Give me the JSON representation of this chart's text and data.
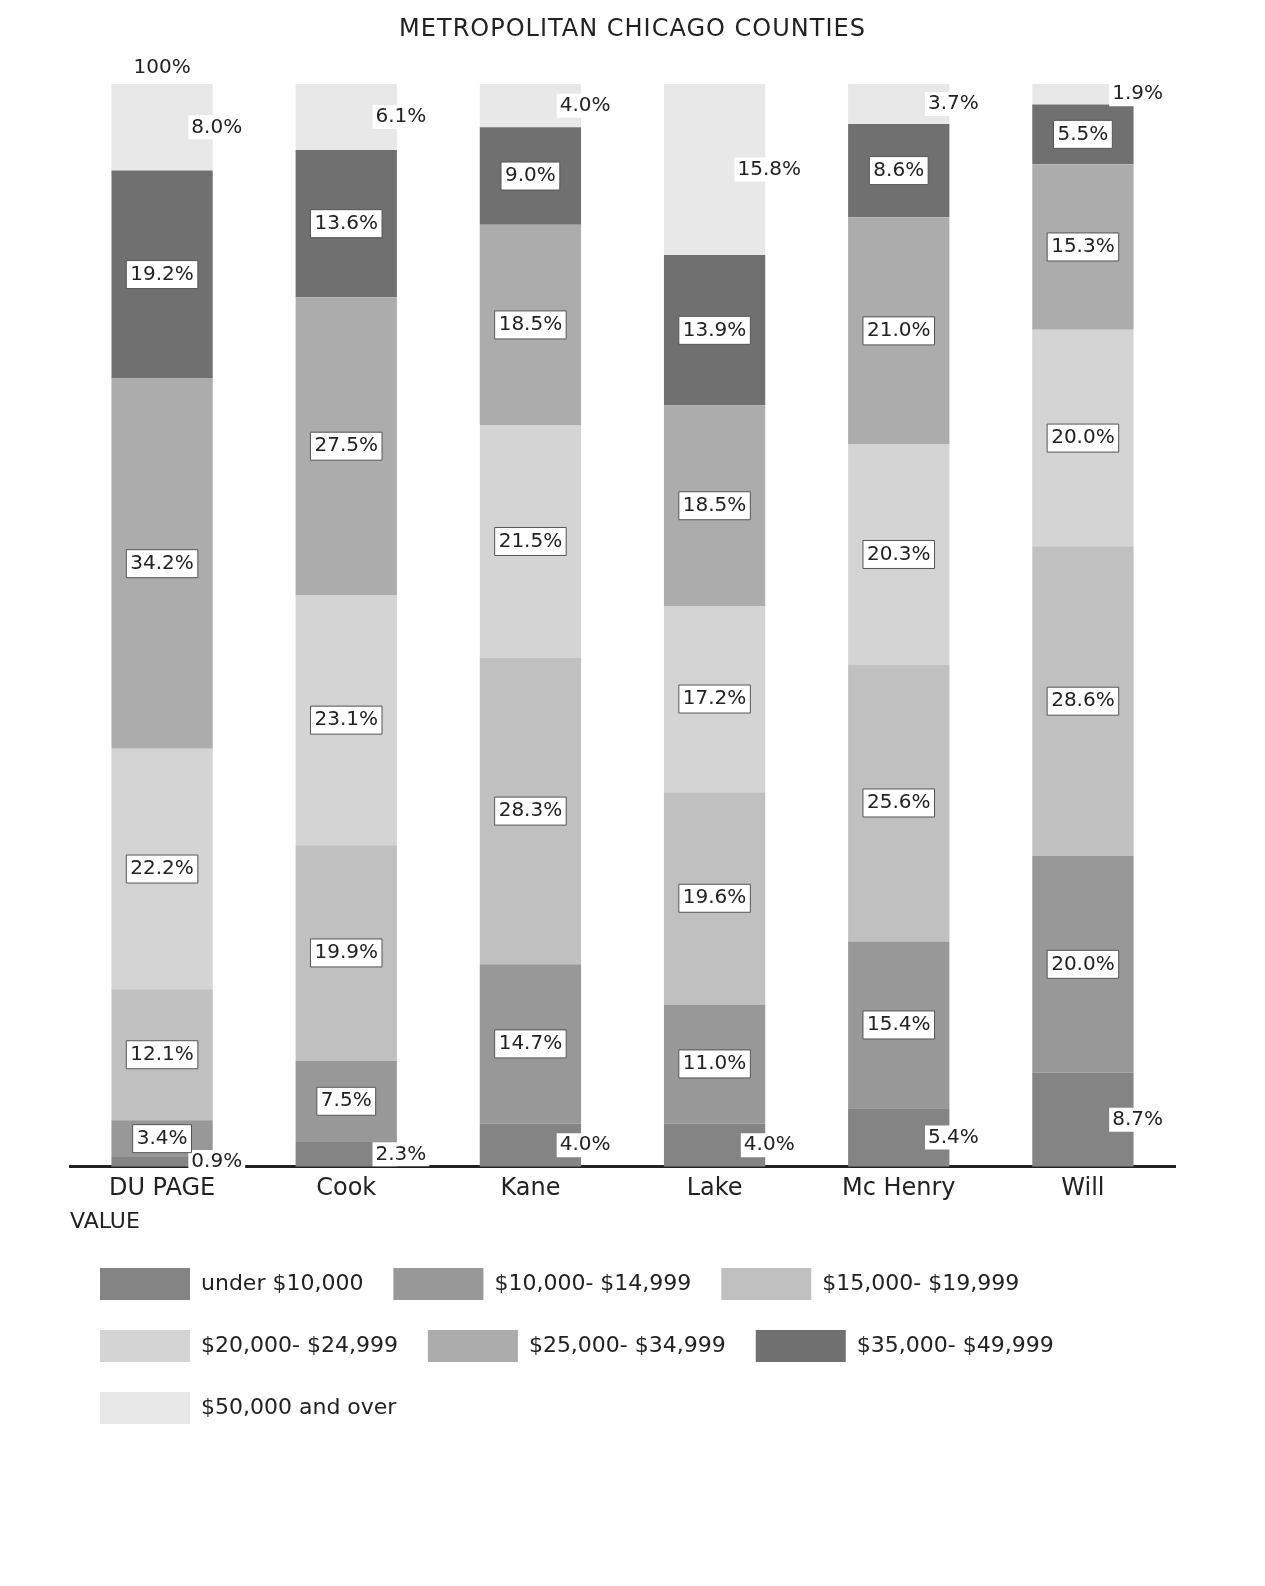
{
  "chart_data": {
    "type": "bar",
    "title": "METROPOLITAN CHICAGO COUNTIES",
    "legend_title": "VALUE",
    "categories": [
      "DU PAGE",
      "Cook",
      "Kane",
      "Lake",
      "Mc Henry",
      "Will"
    ],
    "stacked": true,
    "ylim": [
      0,
      100
    ],
    "tick_labels": "x",
    "grid": false,
    "legend": "bottom",
    "annotations": [
      {
        "text": "100%",
        "x": "DU PAGE",
        "y": 100
      }
    ],
    "series": [
      {
        "name": "under\n$10,000",
        "color": "#848484",
        "values": [
          0.9,
          2.3,
          4.0,
          4.0,
          5.4,
          8.7
        ],
        "value_labels": [
          "0.9%",
          "2.3%",
          "4.0%",
          "4.0%",
          "5.4%",
          "8.7%"
        ]
      },
      {
        "name": "$10,000-\n$14,999",
        "color": "#989898",
        "values": [
          3.4,
          7.5,
          14.7,
          11.0,
          15.4,
          20.0
        ],
        "value_labels": [
          "3.4%",
          "7.5%",
          "14.7%",
          "11.0%",
          "15.4%",
          "20.0%"
        ]
      },
      {
        "name": "$15,000-\n$19,999",
        "color": "#c0c0c0",
        "values": [
          12.1,
          19.9,
          28.3,
          19.6,
          25.6,
          28.6
        ],
        "value_labels": [
          "12.1%",
          "19.9%",
          "28.3%",
          "19.6%",
          "25.6%",
          "28.6%"
        ]
      },
      {
        "name": "$20,000-\n$24,999",
        "color": "#d4d4d4",
        "values": [
          22.2,
          23.1,
          21.5,
          17.2,
          20.3,
          20.0
        ],
        "value_labels": [
          "22.2%",
          "23.1%",
          "21.5%",
          "17.2%",
          "20.3%",
          "20.0%"
        ]
      },
      {
        "name": "$25,000-\n$34,999",
        "color": "#acacac",
        "values": [
          34.2,
          27.5,
          18.5,
          18.5,
          21.0,
          15.3
        ],
        "value_labels": [
          "34.2%",
          "27.5%",
          "18.5%",
          "18.5%",
          "21.0%",
          "15.3%"
        ]
      },
      {
        "name": "$35,000-\n$49,999",
        "color": "#707070",
        "values": [
          19.2,
          13.6,
          9.0,
          13.9,
          8.6,
          5.5
        ],
        "value_labels": [
          "19.2%",
          "13.6%",
          "9.0%",
          "13.9%",
          "8.6%",
          "5.5%"
        ]
      },
      {
        "name": "$50,000\nand over",
        "color": "#e8e8e8",
        "values": [
          8.0,
          6.1,
          4.0,
          15.8,
          3.7,
          1.9
        ],
        "value_labels": [
          "8.0%",
          "6.1%",
          "4.0%",
          "15.8%",
          "3.7%",
          "1.9%"
        ]
      }
    ]
  }
}
